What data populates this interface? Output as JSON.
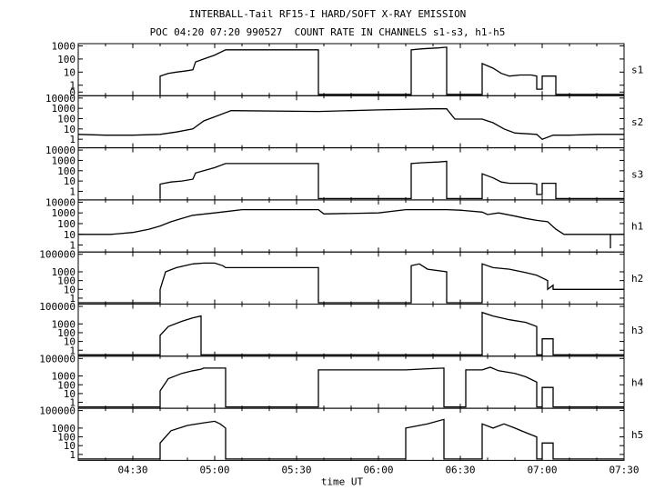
{
  "header": {
    "title": "INTERBALL-Tail RF15-I HARD/SOFT X-RAY EMISSION",
    "subtitle": "POC 04:20 07:20 990527  COUNT RATE IN CHANNELS s1-s3, h1-h5"
  },
  "chart_data": {
    "type": "line",
    "title": "INTERBALL-Tail RF15-I HARD/SOFT X-RAY EMISSION",
    "subtitle": "POC 04:20 07:20 990527  COUNT RATE IN CHANNELS s1-s3, h1-h5",
    "xlabel": "time UT",
    "x_unit": "minutes UT",
    "xlim": [
      250,
      450
    ],
    "x_ticks": [
      {
        "value": 270,
        "label": "04:30"
      },
      {
        "value": 300,
        "label": "05:00"
      },
      {
        "value": 330,
        "label": "05:30"
      },
      {
        "value": 360,
        "label": "06:00"
      },
      {
        "value": 390,
        "label": "06:30"
      },
      {
        "value": 420,
        "label": "07:00"
      },
      {
        "value": 450,
        "label": "07:30"
      }
    ],
    "y_scale": "log",
    "grid": false,
    "line_color": "#000000",
    "series": [
      {
        "name": "s1",
        "ylim": [
          0.2,
          1000
        ],
        "y_ticks": [
          {
            "value": 1000,
            "label": "1000"
          },
          {
            "value": 100,
            "label": "100"
          },
          {
            "value": 10,
            "label": "10"
          },
          {
            "value": 1,
            "label": "1"
          },
          {
            "value": 0.3,
            "label": "0"
          }
        ],
        "points": [
          [
            280,
            0.2
          ],
          [
            280,
            5
          ],
          [
            283,
            8
          ],
          [
            286,
            10
          ],
          [
            289,
            12
          ],
          [
            292,
            15
          ],
          [
            293,
            60
          ],
          [
            296,
            100
          ],
          [
            300,
            200
          ],
          [
            304,
            500
          ],
          [
            338,
            500
          ],
          [
            338,
            0.2
          ],
          [
            372,
            0.2
          ],
          [
            372,
            500
          ],
          [
            376,
            600
          ],
          [
            382,
            700
          ],
          [
            385,
            800
          ],
          [
            385,
            0.2
          ],
          [
            398,
            0.2
          ],
          [
            398,
            45
          ],
          [
            402,
            20
          ],
          [
            405,
            8
          ],
          [
            408,
            5
          ],
          [
            412,
            6
          ],
          [
            416,
            6
          ],
          [
            418,
            5
          ],
          [
            418,
            0.5
          ],
          [
            420,
            0.5
          ],
          [
            420,
            5
          ],
          [
            425,
            5
          ],
          [
            425,
            0.2
          ],
          [
            450,
            0.2
          ]
        ]
      },
      {
        "name": "s2",
        "ylim": [
          0.2,
          10000
        ],
        "y_ticks": [
          {
            "value": 10000,
            "label": "10000"
          },
          {
            "value": 1000,
            "label": "1000"
          },
          {
            "value": 100,
            "label": "100"
          },
          {
            "value": 10,
            "label": "10"
          },
          {
            "value": 1,
            "label": "1"
          }
        ],
        "points": [
          [
            250,
            3
          ],
          [
            260,
            2.5
          ],
          [
            270,
            2.5
          ],
          [
            280,
            3
          ],
          [
            286,
            5
          ],
          [
            292,
            10
          ],
          [
            296,
            60
          ],
          [
            300,
            150
          ],
          [
            306,
            600
          ],
          [
            338,
            500
          ],
          [
            360,
            700
          ],
          [
            372,
            800
          ],
          [
            380,
            900
          ],
          [
            385,
            900
          ],
          [
            388,
            90
          ],
          [
            398,
            90
          ],
          [
            402,
            40
          ],
          [
            406,
            10
          ],
          [
            410,
            4
          ],
          [
            418,
            3
          ],
          [
            420,
            1
          ],
          [
            424,
            2.5
          ],
          [
            430,
            2.5
          ],
          [
            440,
            3
          ],
          [
            450,
            3
          ]
        ]
      },
      {
        "name": "s3",
        "ylim": [
          0.2,
          10000
        ],
        "y_ticks": [
          {
            "value": 10000,
            "label": "10000"
          },
          {
            "value": 1000,
            "label": "1000"
          },
          {
            "value": 100,
            "label": "100"
          },
          {
            "value": 10,
            "label": "10"
          },
          {
            "value": 1,
            "label": "1"
          }
        ],
        "points": [
          [
            280,
            0.2
          ],
          [
            280,
            5
          ],
          [
            284,
            8
          ],
          [
            288,
            10
          ],
          [
            292,
            15
          ],
          [
            293,
            60
          ],
          [
            296,
            100
          ],
          [
            300,
            200
          ],
          [
            304,
            500
          ],
          [
            338,
            500
          ],
          [
            338,
            0.2
          ],
          [
            372,
            0.2
          ],
          [
            372,
            500
          ],
          [
            376,
            600
          ],
          [
            382,
            700
          ],
          [
            385,
            800
          ],
          [
            385,
            0.2
          ],
          [
            398,
            0.2
          ],
          [
            398,
            50
          ],
          [
            402,
            20
          ],
          [
            405,
            8
          ],
          [
            408,
            6
          ],
          [
            412,
            6
          ],
          [
            416,
            6
          ],
          [
            418,
            5
          ],
          [
            418,
            0.5
          ],
          [
            420,
            0.5
          ],
          [
            420,
            6
          ],
          [
            425,
            6
          ],
          [
            425,
            0.2
          ],
          [
            450,
            0.2
          ]
        ]
      },
      {
        "name": "h1",
        "ylim": [
          0.3,
          10000
        ],
        "y_ticks": [
          {
            "value": 10000,
            "label": "10000"
          },
          {
            "value": 1000,
            "label": "1000"
          },
          {
            "value": 100,
            "label": "100"
          },
          {
            "value": 10,
            "label": "10"
          },
          {
            "value": 1,
            "label": "1"
          }
        ],
        "points": [
          [
            250,
            10
          ],
          [
            262,
            10
          ],
          [
            270,
            15
          ],
          [
            276,
            30
          ],
          [
            280,
            60
          ],
          [
            284,
            150
          ],
          [
            288,
            300
          ],
          [
            292,
            600
          ],
          [
            300,
            1000
          ],
          [
            310,
            2000
          ],
          [
            338,
            2000
          ],
          [
            340,
            800
          ],
          [
            360,
            1000
          ],
          [
            370,
            2000
          ],
          [
            385,
            2000
          ],
          [
            390,
            1800
          ],
          [
            398,
            1200
          ],
          [
            400,
            700
          ],
          [
            404,
            1000
          ],
          [
            410,
            500
          ],
          [
            414,
            300
          ],
          [
            418,
            200
          ],
          [
            422,
            150
          ],
          [
            425,
            30
          ],
          [
            428,
            10
          ],
          [
            445,
            10
          ],
          [
            445,
            0.5
          ],
          [
            445,
            10
          ],
          [
            450,
            10
          ]
        ]
      },
      {
        "name": "h2",
        "ylim": [
          0.3,
          100000
        ],
        "y_ticks": [
          {
            "value": 100000,
            "label": "100000"
          },
          {
            "value": 1000,
            "label": "1000"
          },
          {
            "value": 100,
            "label": "100"
          },
          {
            "value": 10,
            "label": "10"
          },
          {
            "value": 1,
            "label": "1"
          }
        ],
        "points": [
          [
            250,
            0.3
          ],
          [
            280,
            0.3
          ],
          [
            280,
            10
          ],
          [
            282,
            1000
          ],
          [
            286,
            3000
          ],
          [
            292,
            8000
          ],
          [
            296,
            10000
          ],
          [
            300,
            10000
          ],
          [
            303,
            5000
          ],
          [
            304,
            3000
          ],
          [
            338,
            3000
          ],
          [
            338,
            0.3
          ],
          [
            372,
            0.3
          ],
          [
            372,
            5000
          ],
          [
            375,
            8000
          ],
          [
            378,
            2000
          ],
          [
            385,
            1000
          ],
          [
            385,
            0.3
          ],
          [
            398,
            0.3
          ],
          [
            398,
            8000
          ],
          [
            402,
            3000
          ],
          [
            408,
            2000
          ],
          [
            414,
            800
          ],
          [
            418,
            400
          ],
          [
            420,
            200
          ],
          [
            422,
            100
          ],
          [
            422,
            10
          ],
          [
            424,
            30
          ],
          [
            424,
            10
          ],
          [
            450,
            10
          ]
        ]
      },
      {
        "name": "h3",
        "ylim": [
          0.3,
          100000
        ],
        "y_ticks": [
          {
            "value": 100000,
            "label": "100000"
          },
          {
            "value": 1000,
            "label": "1000"
          },
          {
            "value": 100,
            "label": "100"
          },
          {
            "value": 10,
            "label": "10"
          },
          {
            "value": 1,
            "label": "1"
          }
        ],
        "points": [
          [
            250,
            0.3
          ],
          [
            280,
            0.3
          ],
          [
            280,
            50
          ],
          [
            283,
            500
          ],
          [
            288,
            2000
          ],
          [
            292,
            5000
          ],
          [
            295,
            8000
          ],
          [
            295,
            0.3
          ],
          [
            398,
            0.3
          ],
          [
            398,
            20000
          ],
          [
            402,
            8000
          ],
          [
            408,
            3000
          ],
          [
            414,
            1500
          ],
          [
            418,
            500
          ],
          [
            418,
            0.3
          ],
          [
            420,
            0.3
          ],
          [
            420,
            20
          ],
          [
            424,
            20
          ],
          [
            424,
            0.3
          ],
          [
            450,
            0.3
          ]
        ]
      },
      {
        "name": "h4",
        "ylim": [
          0.3,
          100000
        ],
        "y_ticks": [
          {
            "value": 100000,
            "label": "100000"
          },
          {
            "value": 1000,
            "label": "1000"
          },
          {
            "value": 100,
            "label": "100"
          },
          {
            "value": 10,
            "label": "10"
          },
          {
            "value": 1,
            "label": "1"
          }
        ],
        "points": [
          [
            250,
            0.3
          ],
          [
            280,
            0.3
          ],
          [
            280,
            20
          ],
          [
            283,
            500
          ],
          [
            288,
            2000
          ],
          [
            292,
            4000
          ],
          [
            295,
            6000
          ],
          [
            296,
            8000
          ],
          [
            304,
            8000
          ],
          [
            304,
            0.3
          ],
          [
            338,
            0.3
          ],
          [
            338,
            5000
          ],
          [
            370,
            5000
          ],
          [
            380,
            7000
          ],
          [
            384,
            8000
          ],
          [
            384,
            0.3
          ],
          [
            392,
            0.3
          ],
          [
            392,
            5000
          ],
          [
            398,
            5000
          ],
          [
            401,
            10000
          ],
          [
            404,
            4000
          ],
          [
            410,
            2000
          ],
          [
            414,
            800
          ],
          [
            418,
            200
          ],
          [
            418,
            0.3
          ],
          [
            420,
            0.3
          ],
          [
            420,
            50
          ],
          [
            424,
            50
          ],
          [
            424,
            0.3
          ],
          [
            450,
            0.3
          ]
        ]
      },
      {
        "name": "h5",
        "ylim": [
          0.3,
          100000
        ],
        "y_ticks": [
          {
            "value": 100000,
            "label": "100000"
          },
          {
            "value": 1000,
            "label": "1000"
          },
          {
            "value": 100,
            "label": "100"
          },
          {
            "value": 10,
            "label": "10"
          },
          {
            "value": 1,
            "label": "1"
          }
        ],
        "points": [
          [
            250,
            0.3
          ],
          [
            280,
            0.3
          ],
          [
            280,
            20
          ],
          [
            284,
            500
          ],
          [
            290,
            2000
          ],
          [
            296,
            4000
          ],
          [
            300,
            6000
          ],
          [
            302,
            3000
          ],
          [
            304,
            1000
          ],
          [
            304,
            0.3
          ],
          [
            370,
            0.3
          ],
          [
            370,
            1000
          ],
          [
            378,
            3000
          ],
          [
            384,
            10000
          ],
          [
            384,
            0.3
          ],
          [
            398,
            0.3
          ],
          [
            398,
            3000
          ],
          [
            402,
            1000
          ],
          [
            406,
            3000
          ],
          [
            410,
            1000
          ],
          [
            414,
            300
          ],
          [
            418,
            100
          ],
          [
            418,
            0.3
          ],
          [
            420,
            0.3
          ],
          [
            420,
            20
          ],
          [
            424,
            20
          ],
          [
            424,
            0.3
          ],
          [
            450,
            0.3
          ]
        ]
      }
    ]
  }
}
